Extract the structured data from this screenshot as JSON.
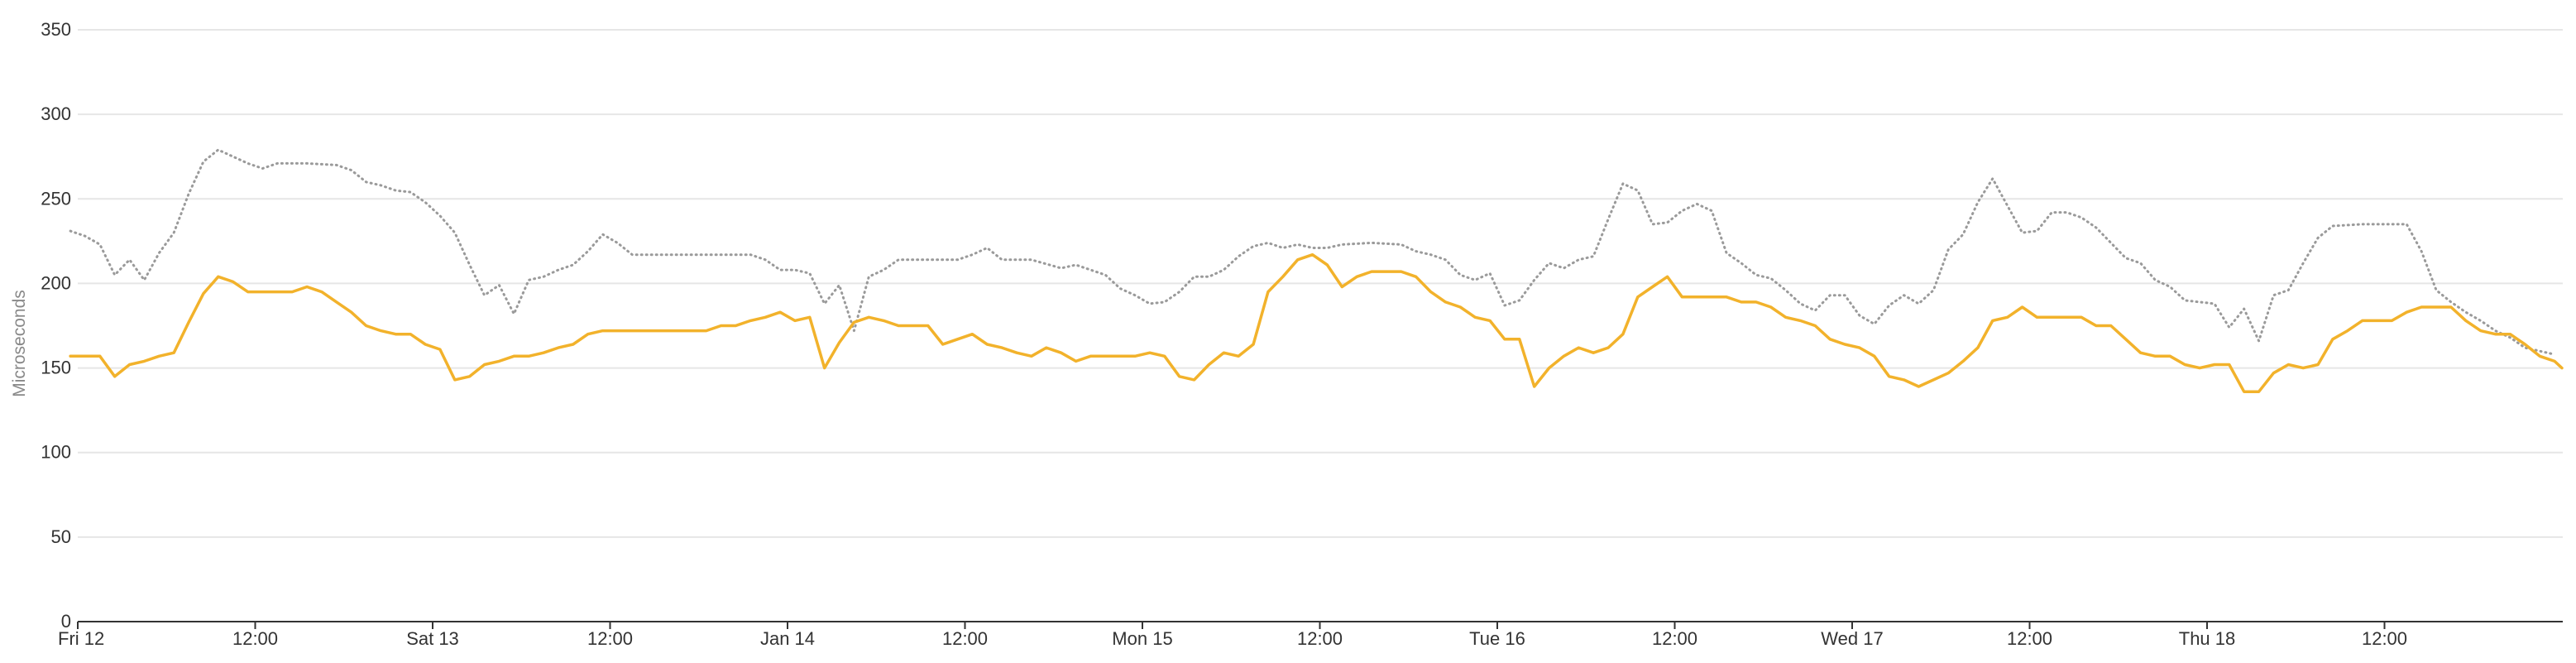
{
  "chart_data": {
    "type": "line",
    "title": "",
    "xlabel": "",
    "ylabel": "Microseconds",
    "ylim": [
      0,
      350
    ],
    "yticks": [
      0,
      50,
      100,
      150,
      200,
      250,
      300,
      350
    ],
    "xlim": [
      0,
      168
    ],
    "x_unit": "hours since Fri 12 00:00",
    "x_ticks": [
      {
        "x": 0,
        "label": "Fri 12"
      },
      {
        "x": 12,
        "label": "12:00"
      },
      {
        "x": 24,
        "label": "Sat 13"
      },
      {
        "x": 36,
        "label": "12:00"
      },
      {
        "x": 48,
        "label": "Jan 14"
      },
      {
        "x": 60,
        "label": "12:00"
      },
      {
        "x": 72,
        "label": "Mon 15"
      },
      {
        "x": 84,
        "label": "12:00"
      },
      {
        "x": 96,
        "label": "Tue 16"
      },
      {
        "x": 108,
        "label": "12:00"
      },
      {
        "x": 120,
        "label": "Wed 17"
      },
      {
        "x": 132,
        "label": "12:00"
      },
      {
        "x": 144,
        "label": "Thu 18"
      },
      {
        "x": 156,
        "label": "12:00"
      }
    ],
    "grid": true,
    "legend": "none",
    "series": [
      {
        "color": "#9a9a9a",
        "style": "dotted",
        "points": [
          [
            -0.5,
            231
          ],
          [
            0.5,
            228
          ],
          [
            1.5,
            223
          ],
          [
            2.5,
            205
          ],
          [
            3.5,
            214
          ],
          [
            4.5,
            202
          ],
          [
            5.5,
            218
          ],
          [
            6.5,
            230
          ],
          [
            7.5,
            253
          ],
          [
            8.5,
            272
          ],
          [
            9.5,
            279
          ],
          [
            10.5,
            275
          ],
          [
            11.5,
            271
          ],
          [
            12.5,
            268
          ],
          [
            13.5,
            271
          ],
          [
            15.5,
            271
          ],
          [
            17.5,
            270
          ],
          [
            18.5,
            267
          ],
          [
            19.5,
            260
          ],
          [
            20.5,
            258
          ],
          [
            21.5,
            255
          ],
          [
            22.5,
            254
          ],
          [
            23.5,
            248
          ],
          [
            24.5,
            240
          ],
          [
            25.5,
            230
          ],
          [
            26.5,
            211
          ],
          [
            27.5,
            193
          ],
          [
            28.5,
            199
          ],
          [
            29.5,
            182
          ],
          [
            30.5,
            202
          ],
          [
            31.5,
            204
          ],
          [
            32.5,
            208
          ],
          [
            33.5,
            211
          ],
          [
            34.5,
            219
          ],
          [
            35.5,
            229
          ],
          [
            36.5,
            224
          ],
          [
            37.5,
            217
          ],
          [
            40.5,
            217
          ],
          [
            42.5,
            217
          ],
          [
            45.5,
            217
          ],
          [
            46.5,
            214
          ],
          [
            47.5,
            208
          ],
          [
            48.5,
            208
          ],
          [
            49.5,
            206
          ],
          [
            50.5,
            188
          ],
          [
            51.5,
            199
          ],
          [
            52.5,
            172
          ],
          [
            53.5,
            204
          ],
          [
            54.5,
            208
          ],
          [
            55.5,
            214
          ],
          [
            57.5,
            214
          ],
          [
            59.5,
            214
          ],
          [
            60.5,
            217
          ],
          [
            61.5,
            221
          ],
          [
            62.5,
            214
          ],
          [
            64.5,
            214
          ],
          [
            66.5,
            209
          ],
          [
            67.5,
            211
          ],
          [
            69.5,
            205
          ],
          [
            70.5,
            197
          ],
          [
            71.5,
            193
          ],
          [
            72.5,
            188
          ],
          [
            73.5,
            189
          ],
          [
            74.5,
            195
          ],
          [
            75.5,
            204
          ],
          [
            76.5,
            204
          ],
          [
            77.5,
            208
          ],
          [
            78.5,
            216
          ],
          [
            79.5,
            222
          ],
          [
            80.5,
            224
          ],
          [
            81.5,
            221
          ],
          [
            82.5,
            223
          ],
          [
            83.5,
            221
          ],
          [
            84.5,
            221
          ],
          [
            85.5,
            223
          ],
          [
            87.5,
            224
          ],
          [
            89.5,
            223
          ],
          [
            90.5,
            219
          ],
          [
            91.5,
            217
          ],
          [
            92.5,
            214
          ],
          [
            93.5,
            205
          ],
          [
            94.5,
            202
          ],
          [
            95.5,
            206
          ],
          [
            96.5,
            187
          ],
          [
            97.5,
            190
          ],
          [
            98.5,
            202
          ],
          [
            99.5,
            212
          ],
          [
            100.5,
            209
          ],
          [
            101.5,
            214
          ],
          [
            102.5,
            216
          ],
          [
            103.5,
            238
          ],
          [
            104.5,
            259
          ],
          [
            105.5,
            255
          ],
          [
            106.5,
            235
          ],
          [
            107.5,
            236
          ],
          [
            108.5,
            243
          ],
          [
            109.5,
            247
          ],
          [
            110.5,
            243
          ],
          [
            111.5,
            218
          ],
          [
            112.5,
            212
          ],
          [
            113.5,
            205
          ],
          [
            114.5,
            203
          ],
          [
            115.5,
            196
          ],
          [
            116.5,
            188
          ],
          [
            117.5,
            184
          ],
          [
            118.5,
            193
          ],
          [
            119.5,
            193
          ],
          [
            120.5,
            181
          ],
          [
            121.5,
            176
          ],
          [
            122.5,
            187
          ],
          [
            123.5,
            193
          ],
          [
            124.5,
            188
          ],
          [
            125.5,
            196
          ],
          [
            126.5,
            220
          ],
          [
            127.5,
            229
          ],
          [
            128.5,
            248
          ],
          [
            129.5,
            262
          ],
          [
            130.5,
            246
          ],
          [
            131.5,
            230
          ],
          [
            132.5,
            231
          ],
          [
            133.5,
            242
          ],
          [
            134.5,
            242
          ],
          [
            135.5,
            239
          ],
          [
            136.5,
            233
          ],
          [
            137.5,
            224
          ],
          [
            138.5,
            215
          ],
          [
            139.5,
            212
          ],
          [
            140.5,
            202
          ],
          [
            141.5,
            198
          ],
          [
            142.5,
            190
          ],
          [
            143.5,
            189
          ],
          [
            144.5,
            188
          ],
          [
            145.5,
            174
          ],
          [
            146.5,
            185
          ],
          [
            147.5,
            166
          ],
          [
            148.5,
            193
          ],
          [
            149.5,
            196
          ],
          [
            150.5,
            212
          ],
          [
            151.5,
            227
          ],
          [
            152.5,
            234
          ],
          [
            154.5,
            235
          ],
          [
            156.5,
            235
          ],
          [
            157.5,
            235
          ],
          [
            158.5,
            219
          ],
          [
            159.5,
            196
          ],
          [
            160.5,
            189
          ],
          [
            161.5,
            183
          ],
          [
            162.5,
            178
          ],
          [
            163.5,
            172
          ],
          [
            164.5,
            168
          ],
          [
            165.5,
            162
          ],
          [
            167.5,
            158
          ]
        ]
      },
      {
        "color": "#f2b22b",
        "style": "solid",
        "points": [
          [
            -0.5,
            157
          ],
          [
            0.5,
            157
          ],
          [
            1.5,
            157
          ],
          [
            2.5,
            145
          ],
          [
            3.5,
            152
          ],
          [
            4.5,
            154
          ],
          [
            5.5,
            157
          ],
          [
            6.5,
            159
          ],
          [
            7.5,
            177
          ],
          [
            8.5,
            194
          ],
          [
            9.5,
            204
          ],
          [
            10.5,
            201
          ],
          [
            11.5,
            195
          ],
          [
            12.5,
            195
          ],
          [
            14.5,
            195
          ],
          [
            15.5,
            198
          ],
          [
            16.5,
            195
          ],
          [
            17.5,
            189
          ],
          [
            18.5,
            183
          ],
          [
            19.5,
            175
          ],
          [
            20.5,
            172
          ],
          [
            21.5,
            170
          ],
          [
            22.5,
            170
          ],
          [
            23.5,
            164
          ],
          [
            24.5,
            161
          ],
          [
            25.5,
            143
          ],
          [
            26.5,
            145
          ],
          [
            27.5,
            152
          ],
          [
            28.5,
            154
          ],
          [
            29.5,
            157
          ],
          [
            30.5,
            157
          ],
          [
            31.5,
            159
          ],
          [
            32.5,
            162
          ],
          [
            33.5,
            164
          ],
          [
            34.5,
            170
          ],
          [
            35.5,
            172
          ],
          [
            37.5,
            172
          ],
          [
            40.5,
            172
          ],
          [
            42.5,
            172
          ],
          [
            43.5,
            175
          ],
          [
            44.5,
            175
          ],
          [
            45.5,
            178
          ],
          [
            46.5,
            180
          ],
          [
            47.5,
            183
          ],
          [
            48.5,
            178
          ],
          [
            49.5,
            180
          ],
          [
            50.5,
            150
          ],
          [
            51.5,
            165
          ],
          [
            52.5,
            177
          ],
          [
            53.5,
            180
          ],
          [
            54.5,
            178
          ],
          [
            55.5,
            175
          ],
          [
            57.5,
            175
          ],
          [
            58.5,
            164
          ],
          [
            59.5,
            167
          ],
          [
            60.5,
            170
          ],
          [
            61.5,
            164
          ],
          [
            62.5,
            162
          ],
          [
            63.5,
            159
          ],
          [
            64.5,
            157
          ],
          [
            65.5,
            162
          ],
          [
            66.5,
            159
          ],
          [
            67.5,
            154
          ],
          [
            68.5,
            157
          ],
          [
            70.5,
            157
          ],
          [
            71.5,
            157
          ],
          [
            72.5,
            159
          ],
          [
            73.5,
            157
          ],
          [
            74.5,
            145
          ],
          [
            75.5,
            143
          ],
          [
            76.5,
            152
          ],
          [
            77.5,
            159
          ],
          [
            78.5,
            157
          ],
          [
            79.5,
            164
          ],
          [
            80.5,
            195
          ],
          [
            81.5,
            204
          ],
          [
            82.5,
            214
          ],
          [
            83.5,
            217
          ],
          [
            84.5,
            211
          ],
          [
            85.5,
            198
          ],
          [
            86.5,
            204
          ],
          [
            87.5,
            207
          ],
          [
            89.5,
            207
          ],
          [
            90.5,
            204
          ],
          [
            91.5,
            195
          ],
          [
            92.5,
            189
          ],
          [
            93.5,
            186
          ],
          [
            94.5,
            180
          ],
          [
            95.5,
            178
          ],
          [
            96.5,
            167
          ],
          [
            97.5,
            167
          ],
          [
            98.5,
            139
          ],
          [
            99.5,
            150
          ],
          [
            100.5,
            157
          ],
          [
            101.5,
            162
          ],
          [
            102.5,
            159
          ],
          [
            103.5,
            162
          ],
          [
            104.5,
            170
          ],
          [
            105.5,
            192
          ],
          [
            106.5,
            198
          ],
          [
            107.5,
            204
          ],
          [
            108.5,
            192
          ],
          [
            110.5,
            192
          ],
          [
            111.5,
            192
          ],
          [
            112.5,
            189
          ],
          [
            113.5,
            189
          ],
          [
            114.5,
            186
          ],
          [
            115.5,
            180
          ],
          [
            116.5,
            178
          ],
          [
            117.5,
            175
          ],
          [
            118.5,
            167
          ],
          [
            119.5,
            164
          ],
          [
            120.5,
            162
          ],
          [
            121.5,
            157
          ],
          [
            122.5,
            145
          ],
          [
            123.5,
            143
          ],
          [
            124.5,
            139
          ],
          [
            125.5,
            143
          ],
          [
            126.5,
            147
          ],
          [
            127.5,
            154
          ],
          [
            128.5,
            162
          ],
          [
            129.5,
            178
          ],
          [
            130.5,
            180
          ],
          [
            131.5,
            186
          ],
          [
            132.5,
            180
          ],
          [
            134.5,
            180
          ],
          [
            135.5,
            180
          ],
          [
            136.5,
            175
          ],
          [
            137.5,
            175
          ],
          [
            138.5,
            167
          ],
          [
            139.5,
            159
          ],
          [
            140.5,
            157
          ],
          [
            141.5,
            157
          ],
          [
            142.5,
            152
          ],
          [
            143.5,
            150
          ],
          [
            144.5,
            152
          ],
          [
            145.5,
            152
          ],
          [
            146.5,
            136
          ],
          [
            147.5,
            136
          ],
          [
            148.5,
            147
          ],
          [
            149.5,
            152
          ],
          [
            150.5,
            150
          ],
          [
            151.5,
            152
          ],
          [
            152.5,
            167
          ],
          [
            153.5,
            172
          ],
          [
            154.5,
            178
          ],
          [
            156.5,
            178
          ],
          [
            157.5,
            183
          ],
          [
            158.5,
            186
          ],
          [
            160.5,
            186
          ],
          [
            161.5,
            178
          ],
          [
            162.5,
            172
          ],
          [
            163.5,
            170
          ],
          [
            164.5,
            170
          ],
          [
            165.5,
            164
          ],
          [
            166.5,
            157
          ],
          [
            167.5,
            154
          ],
          [
            168,
            150
          ]
        ]
      }
    ]
  }
}
